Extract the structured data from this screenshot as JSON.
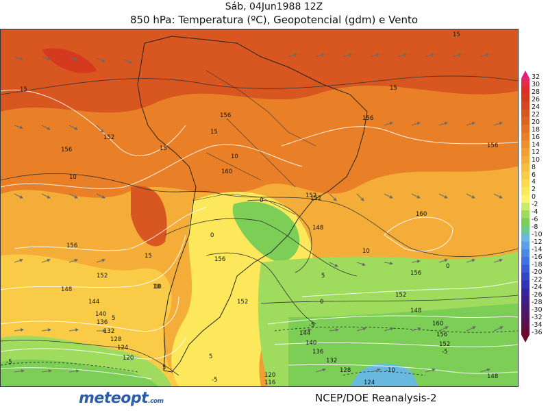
{
  "title": {
    "line1": "Sáb, 04Jun1988 12Z",
    "line2": "850 hPa: Temperatura (ºC), Geopotencial (gdm) e Vento"
  },
  "colorbar": {
    "ticks": [
      "32",
      "30",
      "28",
      "26",
      "24",
      "22",
      "20",
      "18",
      "16",
      "14",
      "12",
      "10",
      "8",
      "6",
      "4",
      "2",
      "0",
      "-2",
      "-4",
      "-6",
      "-8",
      "-10",
      "-12",
      "-14",
      "-16",
      "-18",
      "-20",
      "-22",
      "-24",
      "-26",
      "-28",
      "-30",
      "-32",
      "-34",
      "-36"
    ],
    "colors": [
      "#e8197a",
      "#e42a50",
      "#dc2f28",
      "#d63a1e",
      "#d4481f",
      "#d8561f",
      "#dc6421",
      "#e27224",
      "#e98027",
      "#ee8f2c",
      "#f29e33",
      "#f5ad39",
      "#f7bc40",
      "#f9cb46",
      "#fbda4e",
      "#fce85a",
      "#fcf370",
      "#c9ea6a",
      "#9fdc5e",
      "#7cce56",
      "#6fc98a",
      "#68b8e0",
      "#5aa0e6",
      "#4c88e4",
      "#4272e0",
      "#3a5ad6",
      "#3446c8",
      "#3034b6",
      "#3526a0",
      "#3c1f88",
      "#461a72",
      "#50165e",
      "#5a124a",
      "#640e36",
      "#6e0a24"
    ]
  },
  "contours": {
    "geopotential": [
      "156",
      "152",
      "156",
      "156",
      "156",
      "152",
      "160",
      "160",
      "156",
      "152",
      "148",
      "152",
      "156",
      "144",
      "140",
      "136",
      "132",
      "128",
      "124",
      "120",
      "116",
      "120",
      "124",
      "128",
      "132",
      "136",
      "140",
      "144",
      "148",
      "152",
      "156",
      "148",
      "152",
      "160",
      "156",
      "152",
      "148"
    ],
    "temperature": [
      "15",
      "15",
      "15",
      "15",
      "15",
      "15",
      "10",
      "10",
      "10",
      "10",
      "5",
      "5",
      "5",
      "0",
      "0",
      "0",
      "0",
      "-5",
      "-5",
      "-5",
      "-10",
      "-5",
      "10",
      "5"
    ]
  },
  "logo": {
    "text": "meteopt",
    "suffix": ".com"
  },
  "source": "NCEP/DOE  Reanalysis-2"
}
